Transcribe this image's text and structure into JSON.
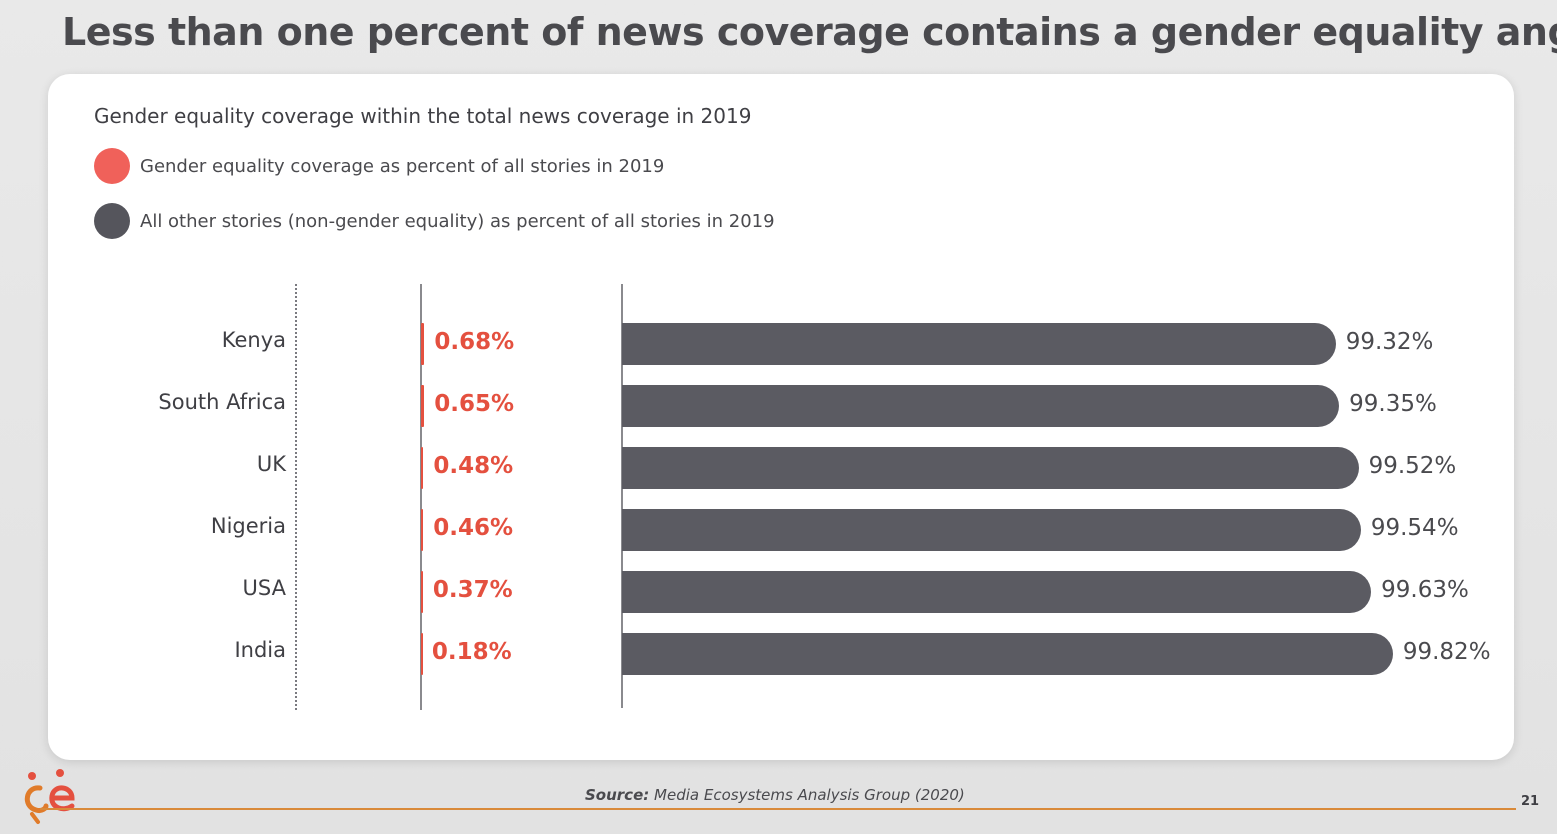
{
  "slide": {
    "title": "Less than one percent of news coverage contains a gender equality angle",
    "source_label": "Source:",
    "source_text": "Media Ecosystems Analysis Group (2020)",
    "page_number": "21"
  },
  "colors": {
    "gender": "#e4503f",
    "other": "#5b5b62"
  },
  "chart_data": {
    "type": "bar",
    "title": "Gender equality coverage within the total news coverage in 2019",
    "legend_placement": "top-left",
    "grid": false,
    "categories": [
      "Kenya",
      "South Africa",
      "UK",
      "Nigeria",
      "USA",
      "India"
    ],
    "series": [
      {
        "name": "Gender equality coverage as percent of all stories in 2019",
        "values": [
          0.68,
          0.65,
          0.48,
          0.46,
          0.37,
          0.18
        ],
        "labels": [
          "0.68%",
          "0.65%",
          "0.48%",
          "0.46%",
          "0.37%",
          "0.18%"
        ]
      },
      {
        "name": "All other stories (non-gender equality) as percent of all stories in 2019",
        "values": [
          99.32,
          99.35,
          99.52,
          99.54,
          99.63,
          99.82
        ],
        "labels": [
          "99.32%",
          "99.35%",
          "99.52%",
          "99.54%",
          "99.63%",
          "99.82%"
        ]
      }
    ]
  }
}
